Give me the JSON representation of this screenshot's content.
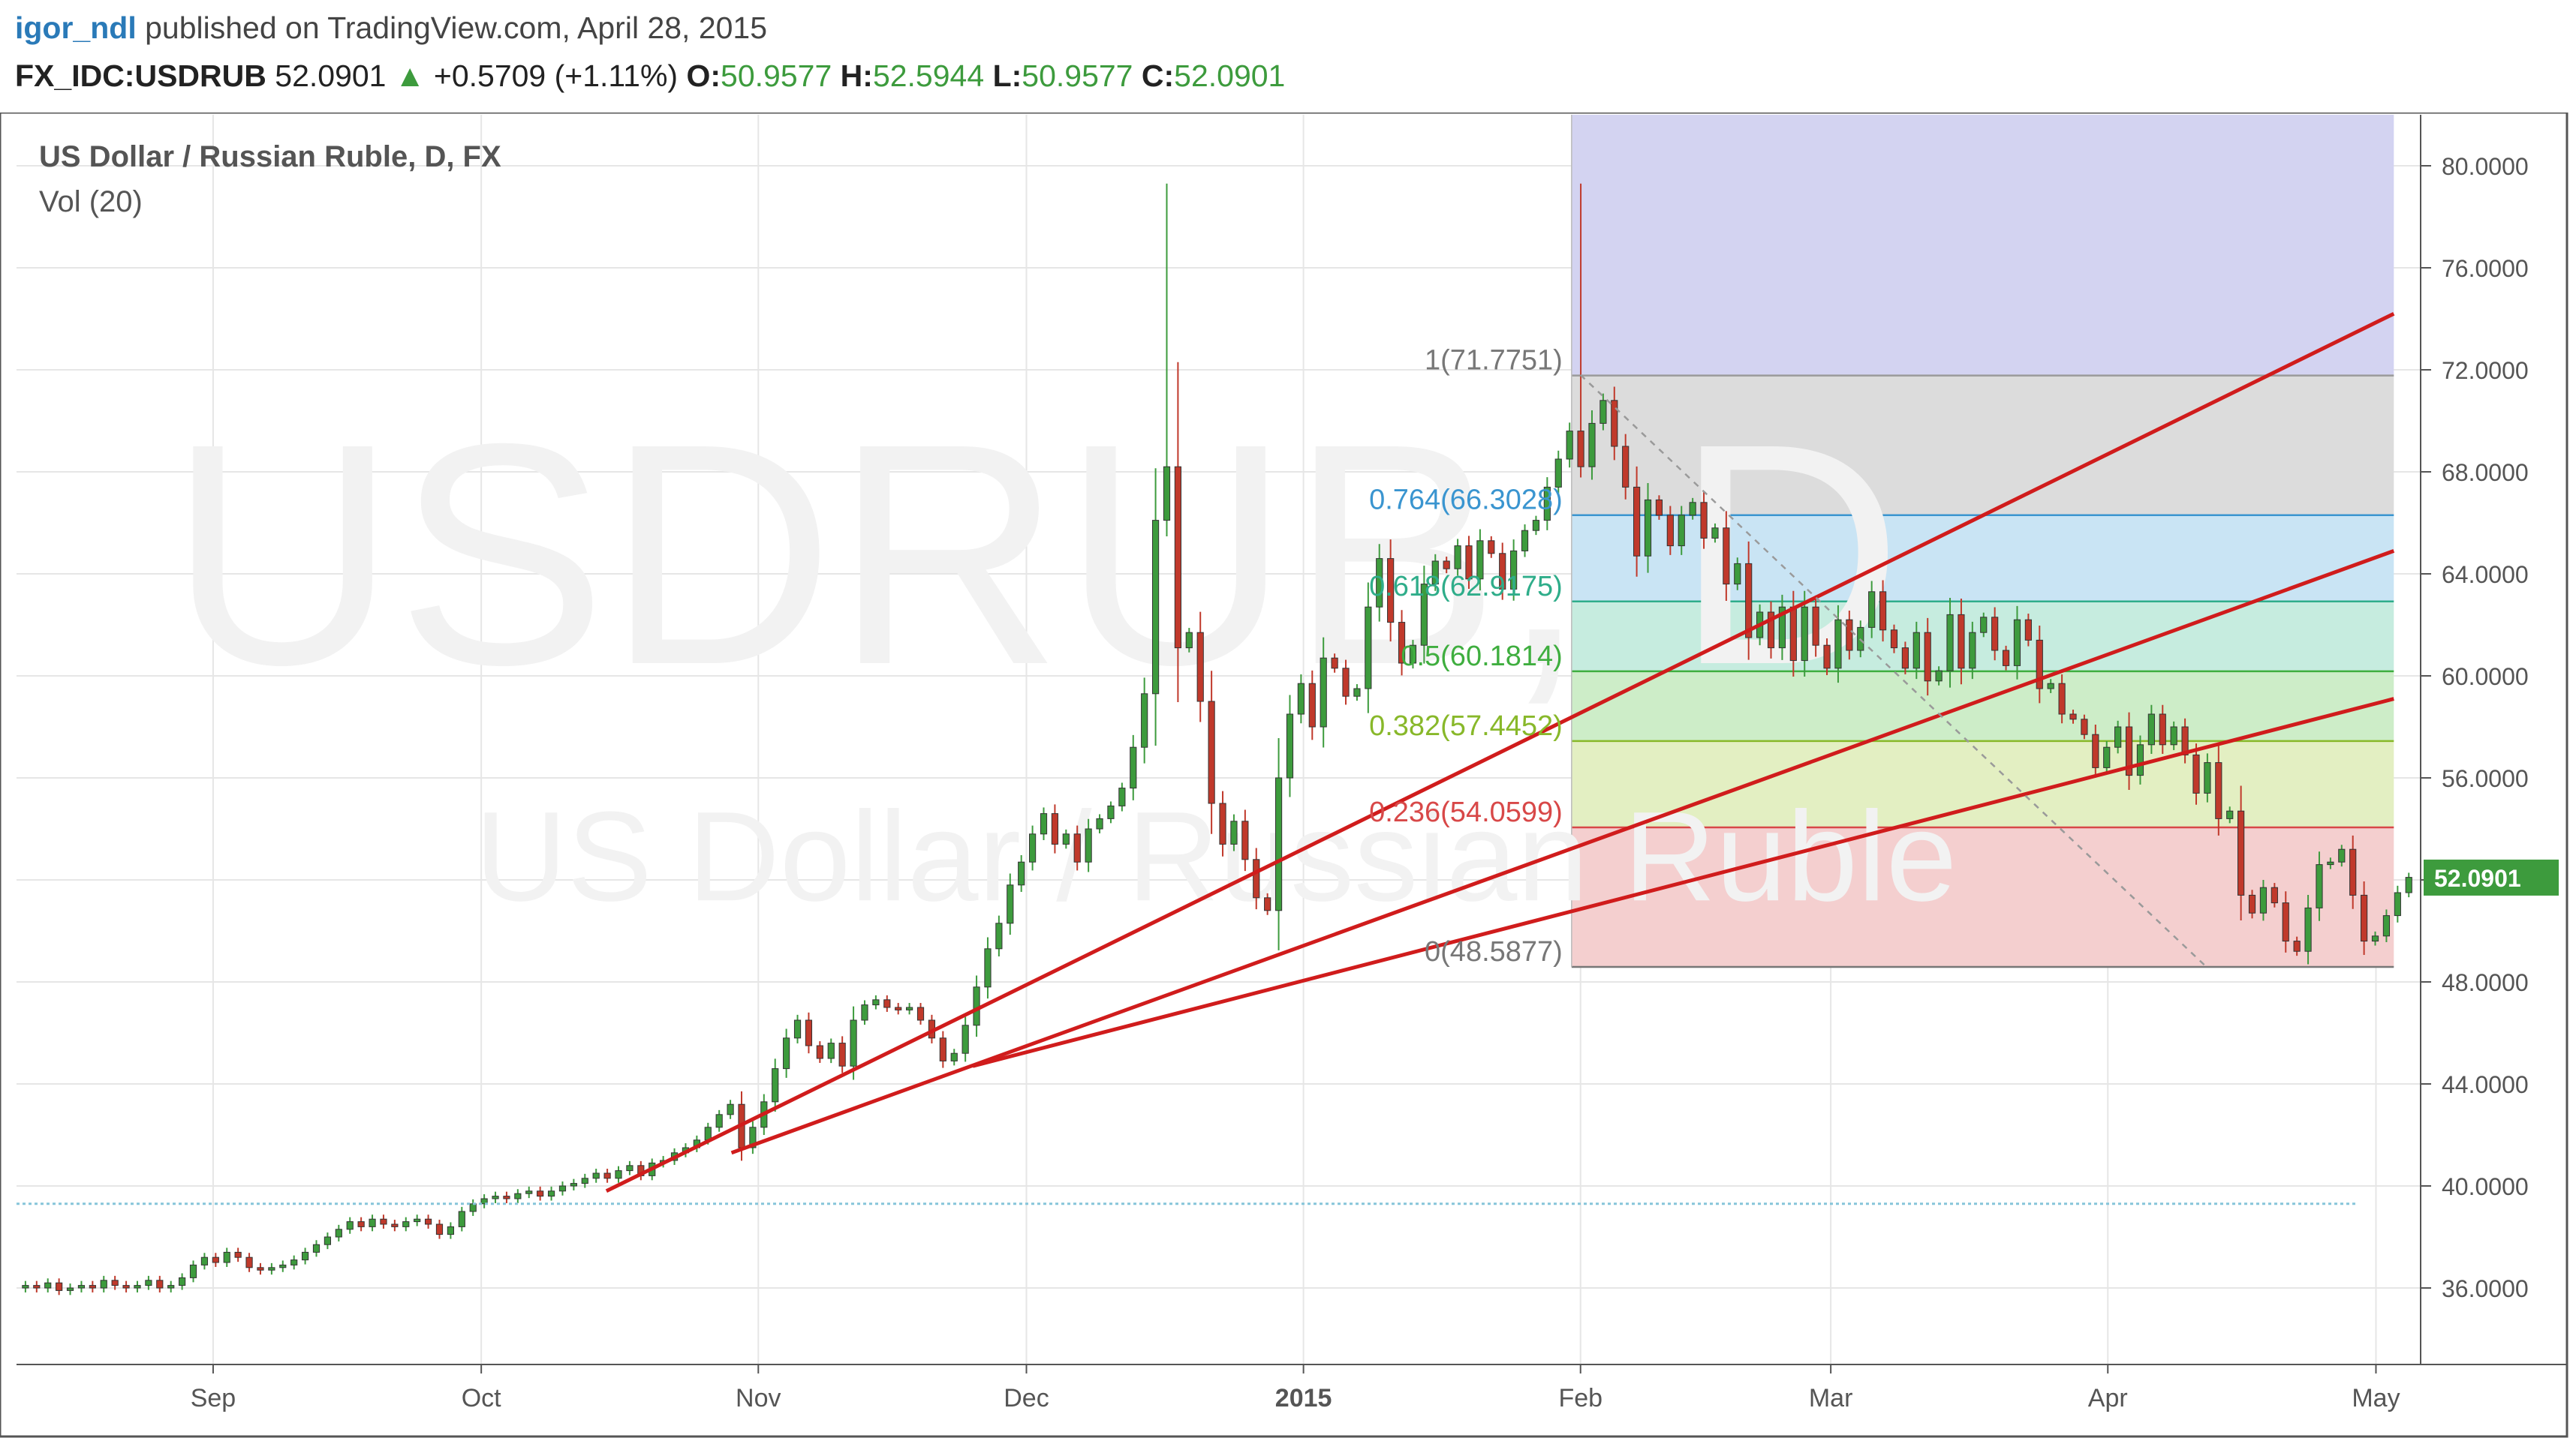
{
  "header": {
    "author": "igor_ndl",
    "published_text": "published on TradingView.com, April 28, 2015",
    "symbol": "FX_IDC:USDRUB",
    "last_price": "52.0901",
    "change": "+0.5709 (+1.11%)",
    "open_label": "O:",
    "open_value": "50.9577",
    "high_label": "H:",
    "high_value": "52.5944",
    "low_label": "L:",
    "low_value": "50.9577",
    "close_label": "C:",
    "close_value": "52.0901"
  },
  "colors": {
    "up": "#3d9b3d",
    "down": "#c0392b",
    "fan_line": "#d01c1c",
    "grid": "#e6e6e6",
    "support": "#86c5da",
    "author": "#2a7ab8"
  },
  "chart_data": {
    "type": "candlestick",
    "title": "US Dollar / Russian Ruble, D, FX",
    "indicator": "Vol (20)",
    "watermark_symbol": "USDRUB, D",
    "watermark_name": "US Dollar / Russian Ruble",
    "ylim": [
      33.0,
      82.0
    ],
    "y_ticks": [
      "80.0000",
      "76.0000",
      "72.0000",
      "68.0000",
      "64.0000",
      "60.0000",
      "56.0000",
      "52.0000",
      "48.0000",
      "44.0000",
      "40.0000",
      "36.0000"
    ],
    "x_start": "2014-08-10",
    "x_end": "2015-05-06",
    "x_ticks": [
      {
        "date": "2014-09-01",
        "label": "Sep"
      },
      {
        "date": "2014-10-01",
        "label": "Oct"
      },
      {
        "date": "2014-11-01",
        "label": "Nov"
      },
      {
        "date": "2014-12-01",
        "label": "Dec"
      },
      {
        "date": "2015-01-01",
        "label": "2015"
      },
      {
        "date": "2015-02-01",
        "label": "Feb"
      },
      {
        "date": "2015-03-01",
        "label": "Mar"
      },
      {
        "date": "2015-04-01",
        "label": "Apr"
      },
      {
        "date": "2015-05-01",
        "label": "May"
      }
    ],
    "current_price_label": "52.0901",
    "support_level": 39.3,
    "fib_retracement": {
      "start_date": "2015-01-31",
      "end_date": "2015-05-03",
      "levels": [
        {
          "ratio": "1",
          "value": "71.7751",
          "label": "1(71.7751)",
          "fill": "#dcdcdc",
          "line": "#9a9a9a",
          "text": "#777777"
        },
        {
          "ratio": "0.764",
          "value": "66.3028",
          "label": "0.764(66.3028)",
          "fill": "#c9e4f4",
          "line": "#3a95d0",
          "text": "#3a95d0"
        },
        {
          "ratio": "0.618",
          "value": "62.9175",
          "label": "0.618(62.9175)",
          "fill": "#c6ecdf",
          "line": "#2fad8a",
          "text": "#2fad8a"
        },
        {
          "ratio": "0.5",
          "value": "60.1814",
          "label": "0.5(60.1814)",
          "fill": "#cdedc8",
          "line": "#3fae3f",
          "text": "#3fae3f"
        },
        {
          "ratio": "0.382",
          "value": "57.4452",
          "label": "0.382(57.4452)",
          "fill": "#e3efc2",
          "line": "#88b82a",
          "text": "#88b82a"
        },
        {
          "ratio": "0.236",
          "value": "54.0599",
          "label": "0.236(54.0599)",
          "fill": "#f4cfcf",
          "line": "#d84848",
          "text": "#d84848"
        },
        {
          "ratio": "0",
          "value": "48.5877",
          "label": "0(48.5877)",
          "fill": "#f4cfcf",
          "line": "#777777",
          "text": "#777777"
        }
      ],
      "top_extension_fill": "#d3d3f1"
    },
    "fan_lines": [
      {
        "from_date": "2014-10-15",
        "from_price": 39.8,
        "to_date": "2015-05-03",
        "to_price": 74.2
      },
      {
        "from_date": "2014-10-29",
        "from_price": 41.3,
        "to_date": "2015-05-03",
        "to_price": 64.9
      },
      {
        "from_date": "2014-11-25",
        "from_price": 44.7,
        "to_date": "2015-05-03",
        "to_price": 59.1
      }
    ],
    "trend_line": {
      "from_date": "2015-02-01",
      "from_price": 71.8,
      "to_date": "2015-04-12",
      "to_price": 48.6
    },
    "candles_close": [
      [
        36.1,
        36.0,
        36.2,
        35.9,
        36.0,
        36.1,
        36.0,
        36.3,
        36.1,
        36.0,
        36.1,
        36.3,
        36.0,
        36.1,
        36.4,
        36.9,
        37.2,
        37.0,
        37.4,
        37.2,
        36.8,
        36.7,
        36.8,
        36.9,
        37.1,
        37.4,
        37.7,
        38.0,
        38.3,
        38.6,
        38.4,
        38.7,
        38.5,
        38.4,
        38.6,
        38.7,
        38.5,
        38.1,
        38.4,
        39.0,
        39.3,
        39.5,
        39.6,
        39.5,
        39.7,
        39.8,
        39.6,
        39.8,
        40.0,
        40.1,
        40.3,
        40.5,
        40.3,
        40.6,
        40.8,
        40.4,
        40.9,
        41.0,
        41.3,
        41.5,
        41.8,
        42.3,
        42.8,
        43.2,
        41.5,
        42.3,
        43.3,
        44.6,
        45.8,
        46.5,
        45.5,
        45.0,
        45.6,
        44.7,
        46.5,
        47.1,
        47.3,
        47.0,
        46.9,
        47.0,
        46.5,
        45.8,
        44.9,
        45.2,
        46.3,
        47.8,
        49.3,
        50.3,
        51.8,
        52.7,
        53.8,
        54.6,
        53.4,
        53.8,
        52.7,
        54.0,
        54.4,
        54.9,
        55.6,
        57.2,
        59.3,
        66.1,
        68.2,
        61.1,
        61.7,
        59.0,
        55.0,
        53.4,
        54.3,
        52.8,
        51.3,
        50.8,
        56.0,
        58.5,
        59.7,
        58.0,
        60.7,
        60.3,
        59.2,
        59.5,
        62.7,
        64.6,
        62.1,
        60.5,
        61.2,
        63.6,
        64.5,
        64.2,
        65.1,
        63.8,
        65.3,
        64.8,
        63.4,
        64.9,
        65.7,
        66.1,
        67.4,
        68.5,
        69.6,
        68.2,
        69.9,
        70.8,
        69.0,
        67.4,
        64.7,
        66.9,
        66.3,
        65.1,
        66.3,
        66.8,
        65.4,
        65.8,
        63.6,
        64.4,
        61.5,
        62.5,
        61.1,
        62.7,
        60.6,
        62.7,
        61.2,
        60.3,
        62.2,
        61.0,
        61.9,
        63.3,
        61.8,
        61.1,
        60.3,
        61.7,
        59.8,
        60.2,
        62.4,
        60.3,
        61.7,
        62.3,
        61.0,
        60.4,
        62.2,
        61.4,
        59.5,
        59.7,
        58.5,
        58.3,
        57.7,
        56.4,
        57.2,
        58.0,
        56.1,
        57.3,
        58.5,
        57.3,
        58.0,
        56.9,
        55.4,
        56.6,
        54.4,
        54.7,
        51.4,
        50.7,
        51.7,
        51.1,
        49.6,
        49.2,
        50.9,
        52.6,
        52.7,
        53.2,
        51.4,
        49.6,
        49.8,
        50.6,
        51.5,
        52.1
      ]
    ],
    "candles_start_date": "2014-08-11",
    "candles_spacing_days": 1.252
  }
}
